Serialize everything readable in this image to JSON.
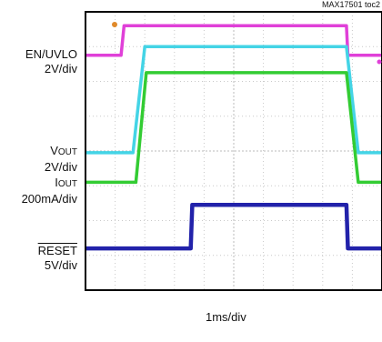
{
  "part_number": "MAX17501 toc2",
  "labels": {
    "en": {
      "name": "EN/UVLO",
      "scale": "2V/div"
    },
    "vout": {
      "main": "V",
      "sub": "OUT",
      "scale": "2V/div"
    },
    "iout": {
      "main": "I",
      "sub": "OUT",
      "scale": "200mA/div"
    },
    "reset": {
      "name": "RESET",
      "scale": "5V/div"
    }
  },
  "timebase": "1ms/div",
  "chart_data": {
    "type": "line",
    "title": "",
    "xlabel": "1ms/div",
    "ylabel": "",
    "xlim": [
      0,
      10
    ],
    "ylim": [
      0,
      8
    ],
    "divisions": {
      "x": 10,
      "y": 8
    },
    "grid": true,
    "series": [
      {
        "name": "EN/UVLO",
        "scale": "2V/div",
        "color": "#e040d8",
        "x": [
          0,
          1.2,
          1.3,
          8.8,
          8.85,
          10
        ],
        "y": [
          6.75,
          6.75,
          7.6,
          7.6,
          6.75,
          6.75
        ]
      },
      {
        "name": "VOUT",
        "scale": "2V/div",
        "color": "#44d4e6",
        "x": [
          0,
          1.6,
          2.0,
          8.8,
          9.2,
          10
        ],
        "y": [
          3.95,
          3.95,
          7.0,
          7.0,
          3.95,
          3.95
        ]
      },
      {
        "name": "IOUT",
        "scale": "200mA/div",
        "color": "#33cc33",
        "x": [
          0,
          1.7,
          2.05,
          8.8,
          9.2,
          10
        ],
        "y": [
          3.1,
          3.1,
          6.25,
          6.25,
          3.1,
          3.1
        ]
      },
      {
        "name": "RESET",
        "scale": "5V/div",
        "color": "#2222aa",
        "x": [
          0,
          3.55,
          3.6,
          8.8,
          8.85,
          10
        ],
        "y": [
          1.2,
          1.2,
          2.45,
          2.45,
          1.2,
          1.2
        ]
      }
    ]
  }
}
